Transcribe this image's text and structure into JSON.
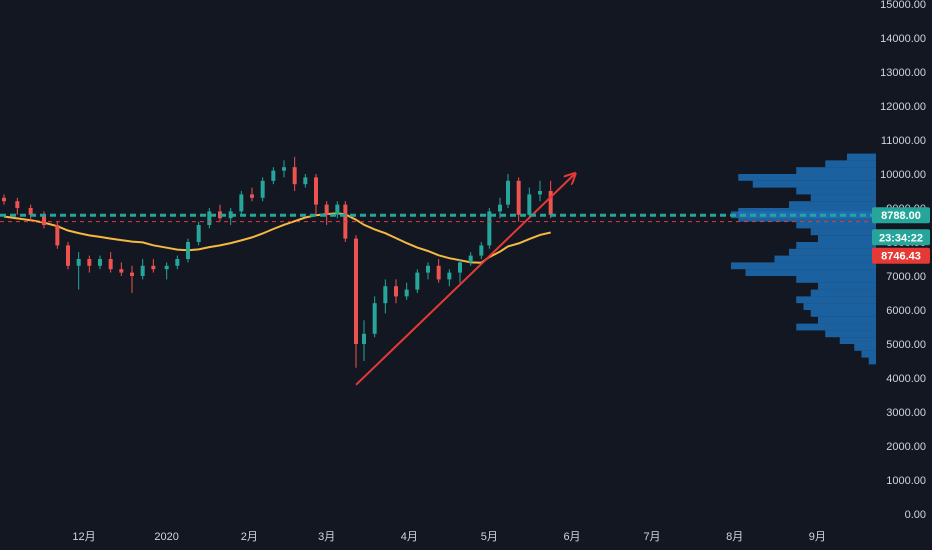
{
  "chart_data": {
    "type": "candlestick",
    "y_axis": {
      "ticks": [
        "0.00",
        "1000.00",
        "2000.00",
        "3000.00",
        "4000.00",
        "5000.00",
        "6000.00",
        "7000.00",
        "8000.00",
        "9000.00",
        "10000.00",
        "11000.00",
        "12000.00",
        "13000.00",
        "14000.00",
        "15000.00"
      ],
      "ylim": [
        0,
        15000
      ]
    },
    "x_axis": {
      "ticks": [
        "12月",
        "2020",
        "2月",
        "3月",
        "4月",
        "5月",
        "6月",
        "7月",
        "8月",
        "9月"
      ]
    },
    "ohlc": [
      [
        "2019-11-01",
        9300,
        9400,
        9100,
        9200
      ],
      [
        "2019-11-06",
        9200,
        9300,
        8800,
        9000
      ],
      [
        "2019-11-11",
        9000,
        9100,
        8600,
        8800
      ],
      [
        "2019-11-16",
        8800,
        8900,
        8400,
        8500
      ],
      [
        "2019-11-21",
        8500,
        8600,
        7800,
        7900
      ],
      [
        "2019-11-25",
        7900,
        8000,
        7200,
        7300
      ],
      [
        "2019-11-29",
        7300,
        7700,
        6600,
        7500
      ],
      [
        "2019-12-03",
        7500,
        7600,
        7100,
        7300
      ],
      [
        "2019-12-07",
        7300,
        7600,
        7200,
        7500
      ],
      [
        "2019-12-11",
        7500,
        7700,
        7100,
        7200
      ],
      [
        "2019-12-15",
        7200,
        7400,
        7000,
        7100
      ],
      [
        "2019-12-19",
        7100,
        7300,
        6500,
        7000
      ],
      [
        "2019-12-23",
        7000,
        7500,
        6900,
        7300
      ],
      [
        "2019-12-27",
        7300,
        7500,
        7100,
        7200
      ],
      [
        "2020-01-01",
        7200,
        7400,
        6900,
        7300
      ],
      [
        "2020-01-05",
        7300,
        7600,
        7200,
        7500
      ],
      [
        "2020-01-09",
        7500,
        8100,
        7400,
        8000
      ],
      [
        "2020-01-13",
        8000,
        8600,
        7900,
        8500
      ],
      [
        "2020-01-17",
        8500,
        9000,
        8400,
        8900
      ],
      [
        "2020-01-21",
        8900,
        9100,
        8600,
        8700
      ],
      [
        "2020-01-25",
        8700,
        9000,
        8500,
        8900
      ],
      [
        "2020-01-29",
        8900,
        9500,
        8800,
        9400
      ],
      [
        "2020-02-02",
        9400,
        9600,
        9200,
        9300
      ],
      [
        "2020-02-06",
        9300,
        9900,
        9200,
        9800
      ],
      [
        "2020-02-10",
        9800,
        10200,
        9700,
        10100
      ],
      [
        "2020-02-14",
        10100,
        10400,
        9900,
        10200
      ],
      [
        "2020-02-18",
        10200,
        10500,
        9500,
        9700
      ],
      [
        "2020-02-22",
        9700,
        10000,
        9600,
        9900
      ],
      [
        "2020-02-26",
        9900,
        10000,
        8800,
        9100
      ],
      [
        "2020-03-01",
        9100,
        9200,
        8500,
        8800
      ],
      [
        "2020-03-05",
        8800,
        9200,
        8700,
        9100
      ],
      [
        "2020-03-08",
        9100,
        9200,
        8000,
        8100
      ],
      [
        "2020-03-12",
        8100,
        8200,
        4300,
        5000
      ],
      [
        "2020-03-15",
        5000,
        5700,
        4500,
        5300
      ],
      [
        "2020-03-19",
        5300,
        6400,
        5200,
        6200
      ],
      [
        "2020-03-23",
        6200,
        6900,
        5900,
        6700
      ],
      [
        "2020-03-27",
        6700,
        6900,
        6200,
        6400
      ],
      [
        "2020-03-31",
        6400,
        6800,
        6300,
        6600
      ],
      [
        "2020-04-04",
        6600,
        7200,
        6500,
        7100
      ],
      [
        "2020-04-08",
        7100,
        7400,
        6900,
        7300
      ],
      [
        "2020-04-12",
        7300,
        7500,
        6800,
        6900
      ],
      [
        "2020-04-16",
        6900,
        7200,
        6700,
        7100
      ],
      [
        "2020-04-20",
        7100,
        7500,
        6800,
        7400
      ],
      [
        "2020-04-24",
        7400,
        7700,
        7300,
        7600
      ],
      [
        "2020-04-28",
        7600,
        8000,
        7500,
        7900
      ],
      [
        "2020-05-01",
        7900,
        9000,
        7800,
        8900
      ],
      [
        "2020-05-05",
        8900,
        9300,
        8700,
        9100
      ],
      [
        "2020-05-08",
        9100,
        10000,
        9000,
        9800
      ],
      [
        "2020-05-12",
        9800,
        9900,
        8600,
        8800
      ],
      [
        "2020-05-16",
        8800,
        9600,
        8700,
        9400
      ],
      [
        "2020-05-20",
        9400,
        9800,
        9200,
        9500
      ],
      [
        "2020-05-24",
        9500,
        9800,
        8700,
        8800
      ]
    ],
    "annotations": {
      "last_price": "8788.00",
      "countdown": "23:34:22",
      "price_label": "8746.43",
      "colors": {
        "up": "#26a69a",
        "down": "#ef5350",
        "moving_average": "#f5b942",
        "trendline": "#e53935",
        "dashed_red": "#e53935",
        "dashed_teal": "#26a69a",
        "volume_profile": "#1e6fb5",
        "background": "#131722",
        "axis_text": "#d1d4dc"
      }
    }
  }
}
